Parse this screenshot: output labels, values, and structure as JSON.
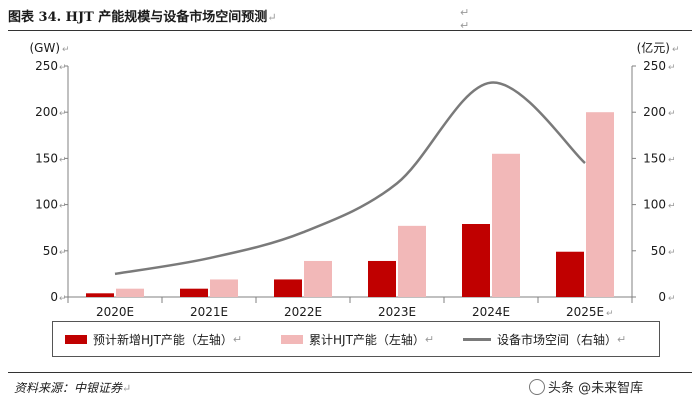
{
  "title": "图表 34. HJT 产能规模与设备市场空间预测",
  "return_mark": "↵",
  "source": "资料来源：中银证券",
  "watermark": "头条 @未来智库",
  "colors": {
    "new_capacity": "#c00000",
    "cumulative_capacity": "#f2b8b8",
    "market_line": "#7a7a7a",
    "axis": "#808080"
  },
  "chart_data": {
    "type": "bar",
    "categories": [
      "2020E",
      "2021E",
      "2022E",
      "2023E",
      "2024E",
      "2025E"
    ],
    "series": [
      {
        "name": "预计新增HJT产能（左轴）",
        "type": "bar",
        "axis": "left",
        "values": [
          4,
          9,
          19,
          39,
          79,
          49
        ]
      },
      {
        "name": "累计HJT产能（左轴）",
        "type": "bar",
        "axis": "left",
        "values": [
          9,
          19,
          39,
          77,
          155,
          200
        ]
      },
      {
        "name": "设备市场空间（右轴）",
        "type": "line",
        "axis": "right",
        "values": [
          25,
          42,
          70,
          123,
          232,
          145
        ]
      }
    ],
    "left_axis": {
      "unit": "(GW)",
      "ylim": [
        0,
        250
      ],
      "ticks": [
        0,
        50,
        100,
        150,
        200,
        250
      ]
    },
    "right_axis": {
      "unit": "(亿元)",
      "ylim": [
        0,
        250
      ],
      "ticks": [
        0,
        50,
        100,
        150,
        200,
        250
      ]
    },
    "legend_position": "bottom",
    "grid": false
  }
}
